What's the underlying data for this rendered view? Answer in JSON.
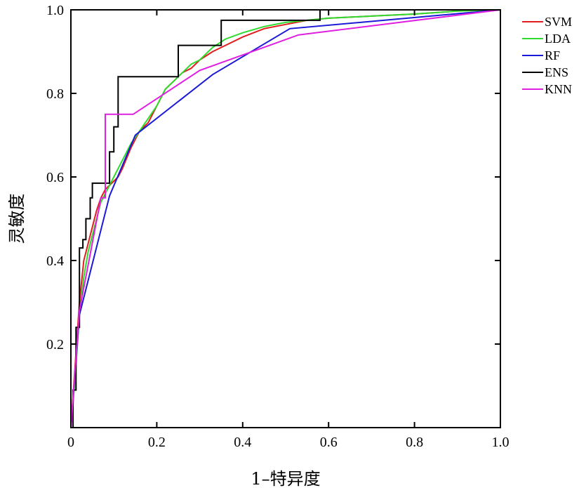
{
  "chart_data": {
    "type": "line",
    "xlabel": "1–特异度",
    "ylabel": "灵敏度",
    "xlim": [
      0,
      1
    ],
    "ylim": [
      0,
      1
    ],
    "xticks": [
      {
        "value": 0,
        "label": "0"
      },
      {
        "value": 0.2,
        "label": "0.2"
      },
      {
        "value": 0.4,
        "label": "0.4"
      },
      {
        "value": 0.6,
        "label": "0.6"
      },
      {
        "value": 0.8,
        "label": "0.8"
      },
      {
        "value": 1.0,
        "label": "1.0"
      }
    ],
    "yticks": [
      {
        "value": 0.2,
        "label": "0.2"
      },
      {
        "value": 0.4,
        "label": "0.4"
      },
      {
        "value": 0.6,
        "label": "0.6"
      },
      {
        "value": 0.8,
        "label": "0.8"
      },
      {
        "value": 1.0,
        "label": "1.0"
      }
    ],
    "grid": false,
    "legend_position": "outside-right-top",
    "series": [
      {
        "name": "SVM",
        "color": "#e11d1d",
        "x": [
          0.0,
          0.01,
          0.02,
          0.03,
          0.04,
          0.05,
          0.06,
          0.07,
          0.08,
          0.09,
          0.1,
          0.11,
          0.12,
          0.14,
          0.16,
          0.18,
          0.2,
          0.22,
          0.24,
          0.26,
          0.28,
          0.3,
          0.33,
          0.36,
          0.4,
          0.45,
          0.5,
          0.55,
          0.6,
          0.7,
          0.8,
          0.9,
          1.0
        ],
        "y": [
          0.0,
          0.15,
          0.3,
          0.4,
          0.44,
          0.48,
          0.52,
          0.55,
          0.57,
          0.58,
          0.59,
          0.6,
          0.62,
          0.67,
          0.71,
          0.73,
          0.77,
          0.81,
          0.83,
          0.85,
          0.86,
          0.88,
          0.9,
          0.915,
          0.935,
          0.955,
          0.965,
          0.975,
          0.98,
          0.985,
          0.99,
          0.997,
          1.0
        ]
      },
      {
        "name": "LDA",
        "color": "#2edb2e",
        "x": [
          0.0,
          0.01,
          0.02,
          0.03,
          0.04,
          0.05,
          0.06,
          0.07,
          0.08,
          0.09,
          0.1,
          0.12,
          0.14,
          0.16,
          0.18,
          0.2,
          0.22,
          0.24,
          0.26,
          0.28,
          0.3,
          0.33,
          0.36,
          0.4,
          0.45,
          0.5,
          0.55,
          0.6,
          0.7,
          0.8,
          0.9,
          1.0
        ],
        "y": [
          0.0,
          0.12,
          0.27,
          0.36,
          0.42,
          0.46,
          0.5,
          0.54,
          0.56,
          0.58,
          0.6,
          0.64,
          0.68,
          0.71,
          0.74,
          0.77,
          0.81,
          0.83,
          0.85,
          0.87,
          0.88,
          0.91,
          0.93,
          0.945,
          0.96,
          0.97,
          0.975,
          0.98,
          0.985,
          0.99,
          0.997,
          1.0
        ]
      },
      {
        "name": "RF",
        "color": "#1a1ad6",
        "x": [
          0.0,
          0.02,
          0.09,
          0.15,
          0.33,
          0.51,
          1.0
        ],
        "y": [
          0.0,
          0.27,
          0.555,
          0.7,
          0.845,
          0.955,
          1.0
        ]
      },
      {
        "name": "ENS",
        "color": "#000000",
        "x": [
          0.0,
          0.005,
          0.005,
          0.012,
          0.012,
          0.02,
          0.02,
          0.028,
          0.028,
          0.035,
          0.035,
          0.045,
          0.045,
          0.05,
          0.05,
          0.09,
          0.09,
          0.1,
          0.1,
          0.11,
          0.11,
          0.13,
          0.13,
          0.25,
          0.25,
          0.27,
          0.27,
          0.35,
          0.35,
          0.58,
          0.58,
          1.0
        ],
        "y": [
          0.0,
          0.0,
          0.09,
          0.09,
          0.24,
          0.24,
          0.43,
          0.43,
          0.45,
          0.45,
          0.5,
          0.5,
          0.55,
          0.55,
          0.585,
          0.585,
          0.66,
          0.66,
          0.72,
          0.72,
          0.84,
          0.84,
          0.84,
          0.84,
          0.915,
          0.915,
          0.915,
          0.915,
          0.975,
          0.975,
          1.0,
          1.0
        ]
      },
      {
        "name": "KNN",
        "color": "#e020e0",
        "x": [
          0.0,
          0.02,
          0.07,
          0.08,
          0.08,
          0.145,
          0.3,
          0.53,
          1.0
        ],
        "y": [
          0.0,
          0.28,
          0.55,
          0.55,
          0.75,
          0.75,
          0.855,
          0.94,
          1.0
        ]
      }
    ]
  }
}
